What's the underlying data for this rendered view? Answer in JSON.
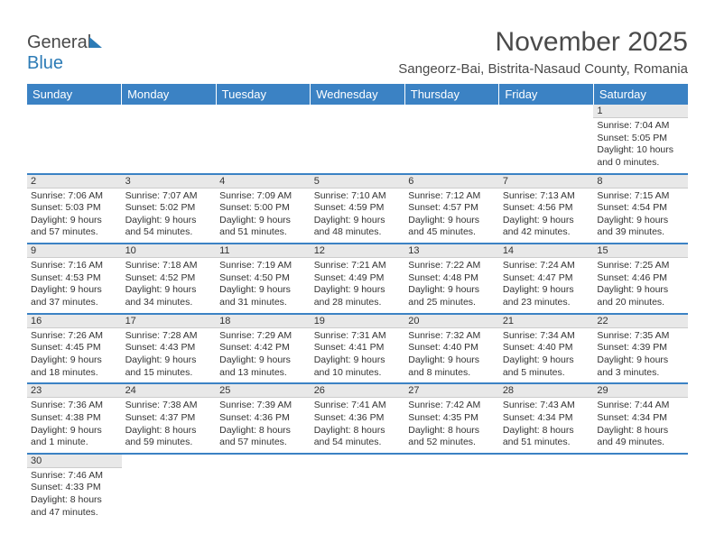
{
  "brand": {
    "name_part1": "General",
    "name_part2": "Blue"
  },
  "title": "November 2025",
  "location": "Sangeorz-Bai, Bistrita-Nasaud County, Romania",
  "weekdays": [
    "Sunday",
    "Monday",
    "Tuesday",
    "Wednesday",
    "Thursday",
    "Friday",
    "Saturday"
  ],
  "colors": {
    "header_bg": "#3b82c4",
    "header_text": "#ffffff",
    "body_text": "#333333",
    "daynum_bg": "#e8e8e8",
    "row_divider": "#3b82c4"
  },
  "typography": {
    "title_fontsize": 30,
    "location_fontsize": 15,
    "weekday_fontsize": 13,
    "cell_fontsize": 10.5
  },
  "weeks": [
    [
      null,
      null,
      null,
      null,
      null,
      null,
      {
        "n": "1",
        "sr": "7:04 AM",
        "ss": "5:05 PM",
        "dl": "10 hours and 0 minutes."
      }
    ],
    [
      {
        "n": "2",
        "sr": "7:06 AM",
        "ss": "5:03 PM",
        "dl": "9 hours and 57 minutes."
      },
      {
        "n": "3",
        "sr": "7:07 AM",
        "ss": "5:02 PM",
        "dl": "9 hours and 54 minutes."
      },
      {
        "n": "4",
        "sr": "7:09 AM",
        "ss": "5:00 PM",
        "dl": "9 hours and 51 minutes."
      },
      {
        "n": "5",
        "sr": "7:10 AM",
        "ss": "4:59 PM",
        "dl": "9 hours and 48 minutes."
      },
      {
        "n": "6",
        "sr": "7:12 AM",
        "ss": "4:57 PM",
        "dl": "9 hours and 45 minutes."
      },
      {
        "n": "7",
        "sr": "7:13 AM",
        "ss": "4:56 PM",
        "dl": "9 hours and 42 minutes."
      },
      {
        "n": "8",
        "sr": "7:15 AM",
        "ss": "4:54 PM",
        "dl": "9 hours and 39 minutes."
      }
    ],
    [
      {
        "n": "9",
        "sr": "7:16 AM",
        "ss": "4:53 PM",
        "dl": "9 hours and 37 minutes."
      },
      {
        "n": "10",
        "sr": "7:18 AM",
        "ss": "4:52 PM",
        "dl": "9 hours and 34 minutes."
      },
      {
        "n": "11",
        "sr": "7:19 AM",
        "ss": "4:50 PM",
        "dl": "9 hours and 31 minutes."
      },
      {
        "n": "12",
        "sr": "7:21 AM",
        "ss": "4:49 PM",
        "dl": "9 hours and 28 minutes."
      },
      {
        "n": "13",
        "sr": "7:22 AM",
        "ss": "4:48 PM",
        "dl": "9 hours and 25 minutes."
      },
      {
        "n": "14",
        "sr": "7:24 AM",
        "ss": "4:47 PM",
        "dl": "9 hours and 23 minutes."
      },
      {
        "n": "15",
        "sr": "7:25 AM",
        "ss": "4:46 PM",
        "dl": "9 hours and 20 minutes."
      }
    ],
    [
      {
        "n": "16",
        "sr": "7:26 AM",
        "ss": "4:45 PM",
        "dl": "9 hours and 18 minutes."
      },
      {
        "n": "17",
        "sr": "7:28 AM",
        "ss": "4:43 PM",
        "dl": "9 hours and 15 minutes."
      },
      {
        "n": "18",
        "sr": "7:29 AM",
        "ss": "4:42 PM",
        "dl": "9 hours and 13 minutes."
      },
      {
        "n": "19",
        "sr": "7:31 AM",
        "ss": "4:41 PM",
        "dl": "9 hours and 10 minutes."
      },
      {
        "n": "20",
        "sr": "7:32 AM",
        "ss": "4:40 PM",
        "dl": "9 hours and 8 minutes."
      },
      {
        "n": "21",
        "sr": "7:34 AM",
        "ss": "4:40 PM",
        "dl": "9 hours and 5 minutes."
      },
      {
        "n": "22",
        "sr": "7:35 AM",
        "ss": "4:39 PM",
        "dl": "9 hours and 3 minutes."
      }
    ],
    [
      {
        "n": "23",
        "sr": "7:36 AM",
        "ss": "4:38 PM",
        "dl": "9 hours and 1 minute."
      },
      {
        "n": "24",
        "sr": "7:38 AM",
        "ss": "4:37 PM",
        "dl": "8 hours and 59 minutes."
      },
      {
        "n": "25",
        "sr": "7:39 AM",
        "ss": "4:36 PM",
        "dl": "8 hours and 57 minutes."
      },
      {
        "n": "26",
        "sr": "7:41 AM",
        "ss": "4:36 PM",
        "dl": "8 hours and 54 minutes."
      },
      {
        "n": "27",
        "sr": "7:42 AM",
        "ss": "4:35 PM",
        "dl": "8 hours and 52 minutes."
      },
      {
        "n": "28",
        "sr": "7:43 AM",
        "ss": "4:34 PM",
        "dl": "8 hours and 51 minutes."
      },
      {
        "n": "29",
        "sr": "7:44 AM",
        "ss": "4:34 PM",
        "dl": "8 hours and 49 minutes."
      }
    ],
    [
      {
        "n": "30",
        "sr": "7:46 AM",
        "ss": "4:33 PM",
        "dl": "8 hours and 47 minutes."
      },
      null,
      null,
      null,
      null,
      null,
      null
    ]
  ],
  "labels": {
    "sunrise": "Sunrise:",
    "sunset": "Sunset:",
    "daylight": "Daylight:"
  }
}
